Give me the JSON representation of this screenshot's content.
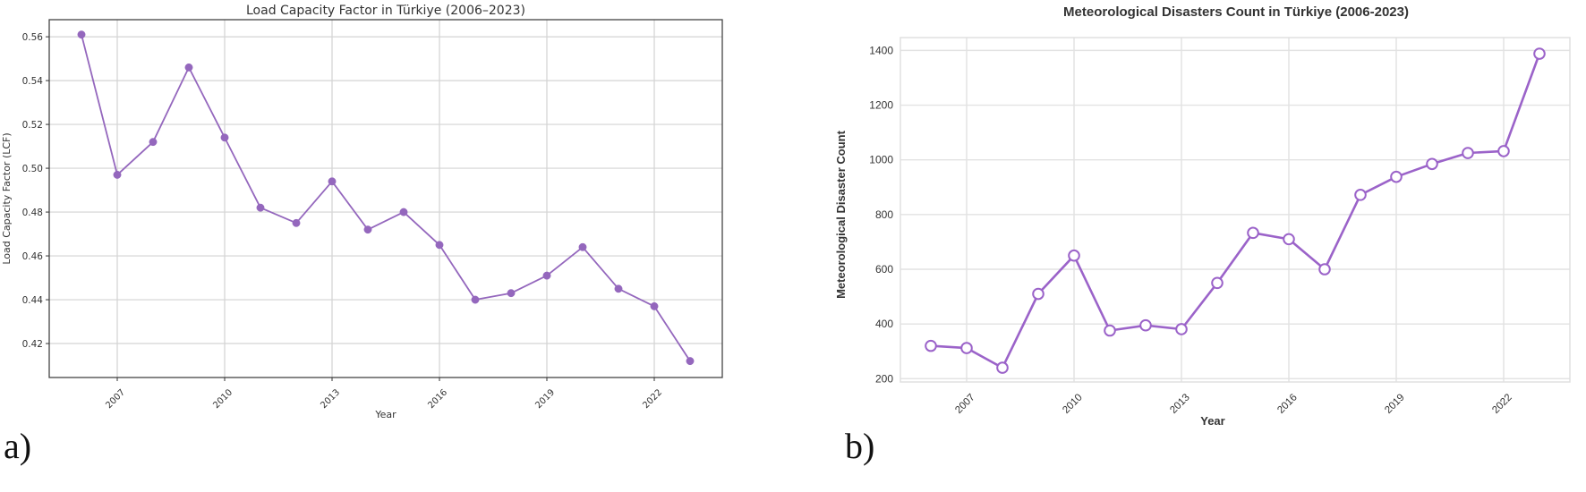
{
  "panels": [
    {
      "label": "a)"
    },
    {
      "label": "b)"
    }
  ],
  "chart_data": [
    {
      "type": "line",
      "title": "Load Capacity Factor in Türkiye (2006–2023)",
      "xlabel": "Year",
      "ylabel": "Load Capacity Factor (LCF)",
      "x": [
        2006,
        2007,
        2008,
        2009,
        2010,
        2011,
        2012,
        2013,
        2014,
        2015,
        2016,
        2017,
        2018,
        2019,
        2020,
        2021,
        2022,
        2023
      ],
      "series": [
        {
          "name": "LCF",
          "values": [
            0.561,
            0.497,
            0.512,
            0.546,
            0.514,
            0.482,
            0.475,
            0.494,
            0.472,
            0.48,
            0.465,
            0.44,
            0.443,
            0.451,
            0.464,
            0.445,
            0.437,
            0.412
          ]
        }
      ],
      "xticks": [
        2007,
        2010,
        2013,
        2016,
        2019,
        2022
      ],
      "yticks": [
        0.42,
        0.44,
        0.46,
        0.48,
        0.5,
        0.52,
        0.54,
        0.56
      ],
      "ytick_labels": [
        "0.42",
        "0.44",
        "0.46",
        "0.48",
        "0.50",
        "0.52",
        "0.54",
        "0.56"
      ],
      "xlim": [
        2005.1,
        2023.9
      ],
      "ylim": [
        0.4045,
        0.5678
      ],
      "grid": true,
      "legend": null,
      "marker": "filled-circle",
      "color": "#9467bd"
    },
    {
      "type": "line",
      "title": "Meteorological Disasters Count in Türkiye (2006-2023)",
      "xlabel": "Year",
      "ylabel": "Meteorological Disaster Count",
      "x": [
        2006,
        2007,
        2008,
        2009,
        2010,
        2011,
        2012,
        2013,
        2014,
        2015,
        2016,
        2017,
        2018,
        2019,
        2020,
        2021,
        2022,
        2023
      ],
      "series": [
        {
          "name": "Meteorological Disaster Count",
          "values": [
            320,
            312,
            240,
            510,
            650,
            376,
            395,
            381,
            550,
            733,
            710,
            600,
            872,
            938,
            985,
            1025,
            1032,
            1388
          ]
        }
      ],
      "xticks": [
        2007,
        2010,
        2013,
        2016,
        2019,
        2022
      ],
      "yticks": [
        200,
        400,
        600,
        800,
        1000,
        1200,
        1400
      ],
      "ytick_labels": [
        "200",
        "400",
        "600",
        "800",
        "1000",
        "1200",
        "1400"
      ],
      "xlim": [
        2005.15,
        2023.85
      ],
      "ylim": [
        188,
        1447
      ],
      "grid": true,
      "legend": null,
      "marker": "open-circle",
      "color": "#9b63c9"
    }
  ]
}
